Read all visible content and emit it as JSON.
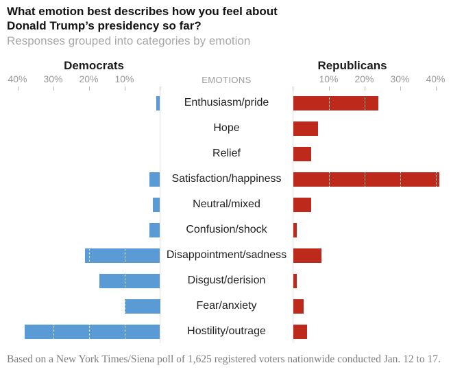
{
  "header": {
    "title": "What emotion best describes how you feel about Donald Trump’s presidency so far?",
    "subtitle": "Responses grouped into categories by emotion"
  },
  "chart_data": {
    "type": "bar",
    "variant": "diverging-horizontal",
    "left_group": "Democrats",
    "right_group": "Republicans",
    "center_header": "EMOTIONS",
    "categories": [
      "Enthusiasm/pride",
      "Hope",
      "Relief",
      "Satisfaction/happiness",
      "Neutral/mixed",
      "Confusion/shock",
      "Disappointment/sadness",
      "Disgust/derision",
      "Fear/anxiety",
      "Hostility/outrage"
    ],
    "series": [
      {
        "name": "Democrats",
        "color": "#5b9bd5",
        "values": [
          1,
          0,
          0,
          3,
          2,
          3,
          21,
          17,
          10,
          38
        ]
      },
      {
        "name": "Republicans",
        "color": "#bd2a1c",
        "values": [
          24,
          7,
          5,
          41,
          5,
          1,
          8,
          1,
          3,
          4
        ]
      }
    ],
    "axis": {
      "unit": "%",
      "max": 40,
      "left_tick_labels": [
        "40%",
        "30%",
        "20%",
        "10%"
      ],
      "right_tick_labels": [
        "10%",
        "20%",
        "30%",
        "40%"
      ]
    },
    "grid": "white dotted vertical lines at 10% intervals overlaying bars",
    "legend_position": "column headers above each side"
  },
  "footer": {
    "source": "Based on a New York Times/Siena poll of 1,625 registered voters nationwide conducted Jan. 12 to 17."
  },
  "colors": {
    "democrat_bar": "#5b9bd5",
    "republican_bar": "#bd2a1c",
    "axis_line": "#e0e0e0",
    "tick": "#bdbdbd",
    "muted_text": "#999999",
    "title_text": "#121212"
  }
}
